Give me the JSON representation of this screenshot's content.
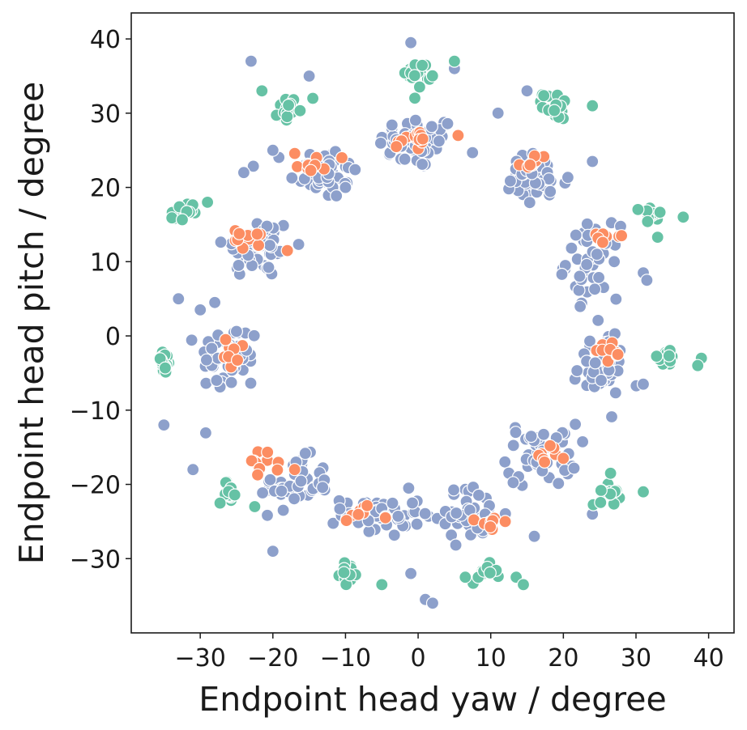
{
  "chart_data": {
    "type": "scatter",
    "title": "",
    "xlabel": "Endpoint head yaw / degree",
    "ylabel": "Endpoint head pitch / degree",
    "xlim": [
      -39.5,
      43.5
    ],
    "ylim": [
      -40,
      43.5
    ],
    "xticks": [
      -30,
      -20,
      -10,
      0,
      10,
      20,
      30,
      40
    ],
    "xtick_labels": [
      "−30",
      "−20",
      "−10",
      "0",
      "10",
      "20",
      "30",
      "40"
    ],
    "yticks": [
      -30,
      -20,
      -10,
      0,
      10,
      20,
      30,
      40
    ],
    "ytick_labels": [
      "−30",
      "−20",
      "−10",
      "0",
      "10",
      "20",
      "30",
      "40"
    ],
    "grid": false,
    "legend": "none",
    "series": [
      {
        "color": "#8da0cb",
        "clusters": [
          {
            "center": [
              0,
              26
            ],
            "spread": [
              4.5,
              3
            ],
            "n": 55
          },
          {
            "center": [
              -13,
              22
            ],
            "spread": [
              4,
              3
            ],
            "n": 45
          },
          {
            "center": [
              -22,
              12
            ],
            "spread": [
              4,
              3.5
            ],
            "n": 50
          },
          {
            "center": [
              -26,
              -3
            ],
            "spread": [
              3.5,
              4
            ],
            "n": 45
          },
          {
            "center": [
              -17,
              -20
            ],
            "spread": [
              4,
              3
            ],
            "n": 45
          },
          {
            "center": [
              -5,
              -24
            ],
            "spread": [
              4.5,
              2.5
            ],
            "n": 45
          },
          {
            "center": [
              7,
              -24
            ],
            "spread": [
              4,
              3
            ],
            "n": 45
          },
          {
            "center": [
              17,
              -16
            ],
            "spread": [
              4,
              3.5
            ],
            "n": 45
          },
          {
            "center": [
              25,
              -4
            ],
            "spread": [
              3,
              4
            ],
            "n": 45
          },
          {
            "center": [
              24,
              10
            ],
            "spread": [
              3,
              4
            ],
            "n": 45
          },
          {
            "center": [
              16,
              21
            ],
            "spread": [
              4,
              3
            ],
            "n": 45
          }
        ],
        "points": [
          [
            -23,
            37
          ],
          [
            -15,
            35
          ],
          [
            -1,
            39.5
          ],
          [
            5,
            36
          ],
          [
            15,
            33
          ],
          [
            -35,
            -12
          ],
          [
            -31,
            -18
          ],
          [
            -20,
            -29
          ],
          [
            -1,
            -32
          ],
          [
            1,
            -35.5
          ],
          [
            2,
            -36
          ],
          [
            24,
            -24
          ],
          [
            16,
            -27
          ],
          [
            31,
            -6.5
          ],
          [
            31,
            8.5
          ],
          [
            31.5,
            7.5
          ],
          [
            27,
            10
          ],
          [
            24,
            23.5
          ],
          [
            -33,
            5
          ],
          [
            -30,
            3.5
          ],
          [
            -28,
            4.5
          ],
          [
            -20,
            25
          ],
          [
            -24,
            22
          ],
          [
            11,
            30
          ],
          [
            -10,
            20
          ]
        ]
      },
      {
        "color": "#fc8d62",
        "clusters": [
          {
            "center": [
              0,
              26.7
            ],
            "spread": [
              2.2,
              0.9
            ],
            "n": 12
          },
          {
            "center": [
              -15,
              23.3
            ],
            "spread": [
              2,
              1.2
            ],
            "n": 10
          },
          {
            "center": [
              -23,
              13
            ],
            "spread": [
              2,
              1.2
            ],
            "n": 10
          },
          {
            "center": [
              -26,
              -2.5
            ],
            "spread": [
              1,
              1.5
            ],
            "n": 8
          },
          {
            "center": [
              -21.5,
              -17.5
            ],
            "spread": [
              1.8,
              1.5
            ],
            "n": 10
          },
          {
            "center": [
              -8,
              -23.5
            ],
            "spread": [
              1.5,
              1.2
            ],
            "n": 7
          },
          {
            "center": [
              9,
              -25
            ],
            "spread": [
              1.5,
              1
            ],
            "n": 9
          },
          {
            "center": [
              18,
              -16
            ],
            "spread": [
              1.5,
              1
            ],
            "n": 7
          },
          {
            "center": [
              26,
              -2
            ],
            "spread": [
              1.5,
              1.2
            ],
            "n": 10
          },
          {
            "center": [
              25.5,
              13.5
            ],
            "spread": [
              1.2,
              1
            ],
            "n": 7
          },
          {
            "center": [
              16,
              23.5
            ],
            "spread": [
              1.5,
              0.8
            ],
            "n": 8
          }
        ],
        "points": [
          [
            12,
            -25
          ],
          [
            28,
            13.5
          ],
          [
            5.5,
            27
          ],
          [
            -3,
            25.5
          ],
          [
            -10.5,
            24
          ],
          [
            -18,
            11.5
          ],
          [
            -26.5,
            -0.5
          ],
          [
            -17,
            -18
          ],
          [
            -4.5,
            -24.5
          ],
          [
            20,
            -16.5
          ],
          [
            27.5,
            -2.5
          ]
        ]
      },
      {
        "color": "#66c2a5",
        "clusters": [
          {
            "center": [
              0,
              35.5
            ],
            "spread": [
              1.5,
              1.5
            ],
            "n": 20
          },
          {
            "center": [
              -18,
              30.5
            ],
            "spread": [
              1,
              1.5
            ],
            "n": 14
          },
          {
            "center": [
              19,
              31
            ],
            "spread": [
              1.5,
              1.5
            ],
            "n": 18
          },
          {
            "center": [
              -32.5,
              16.5
            ],
            "spread": [
              1.2,
              1.2
            ],
            "n": 18
          },
          {
            "center": [
              32,
              16
            ],
            "spread": [
              1.2,
              1.5
            ],
            "n": 18
          },
          {
            "center": [
              -35,
              -3.5
            ],
            "spread": [
              0.8,
              1.5
            ],
            "n": 18
          },
          {
            "center": [
              34,
              -3
            ],
            "spread": [
              1.5,
              0.8
            ],
            "n": 16
          },
          {
            "center": [
              -26,
              -21
            ],
            "spread": [
              1.2,
              1.2
            ],
            "n": 16
          },
          {
            "center": [
              26,
              -21
            ],
            "spread": [
              1.5,
              1.5
            ],
            "n": 16
          },
          {
            "center": [
              -9.5,
              -32
            ],
            "spread": [
              1,
              1
            ],
            "n": 14
          },
          {
            "center": [
              9,
              -32
            ],
            "spread": [
              1.5,
              1
            ],
            "n": 16
          }
        ],
        "points": [
          [
            5,
            37
          ],
          [
            -21.5,
            33
          ],
          [
            -14.5,
            32
          ],
          [
            24,
            31
          ],
          [
            -29,
            18
          ],
          [
            36.5,
            16
          ],
          [
            39,
            -3
          ],
          [
            38.5,
            -4
          ],
          [
            -22.5,
            -23
          ],
          [
            31,
            -21
          ],
          [
            -5,
            -33.5
          ],
          [
            6.5,
            -32.5
          ],
          [
            13.5,
            -32.5
          ],
          [
            14.5,
            -33.5
          ],
          [
            26.5,
            -18.5
          ]
        ]
      }
    ]
  }
}
